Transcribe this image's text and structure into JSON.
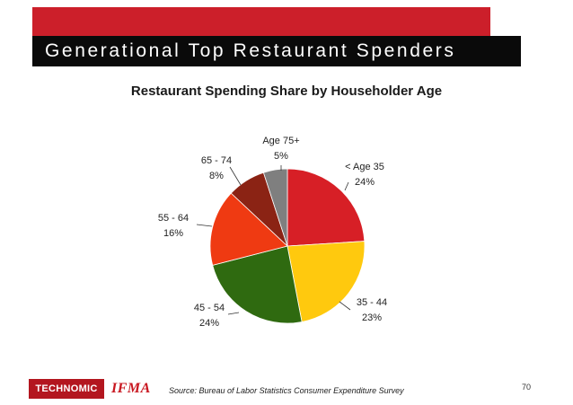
{
  "header": {
    "title": "Generational Top Restaurant Spenders"
  },
  "colors": {
    "accent_red": "#cc1f2a",
    "title_bar": "#0a0a0a"
  },
  "chart_data": {
    "type": "pie",
    "title": "Restaurant Spending Share by Householder Age",
    "legend": "none",
    "slices": [
      {
        "label": "< Age 35",
        "value": 24,
        "value_label": "24%",
        "color": "#d71f26"
      },
      {
        "label": "35 - 44",
        "value": 23,
        "value_label": "23%",
        "color": "#ffc90e"
      },
      {
        "label": "45 - 54",
        "value": 24,
        "value_label": "24%",
        "color": "#2f6a10"
      },
      {
        "label": "55 - 64",
        "value": 16,
        "value_label": "16%",
        "color": "#ef3a12"
      },
      {
        "label": "65 - 74",
        "value": 8,
        "value_label": "8%",
        "color": "#8b2314"
      },
      {
        "label": "Age 75+",
        "value": 5,
        "value_label": "5%",
        "color": "#7f7f7f"
      }
    ]
  },
  "footer": {
    "logo_technomic": "TECHNOMIC",
    "logo_ifma": "IFMA",
    "source": "Source: Bureau of Labor Statistics Consumer Expenditure Survey",
    "page_number": "70"
  }
}
